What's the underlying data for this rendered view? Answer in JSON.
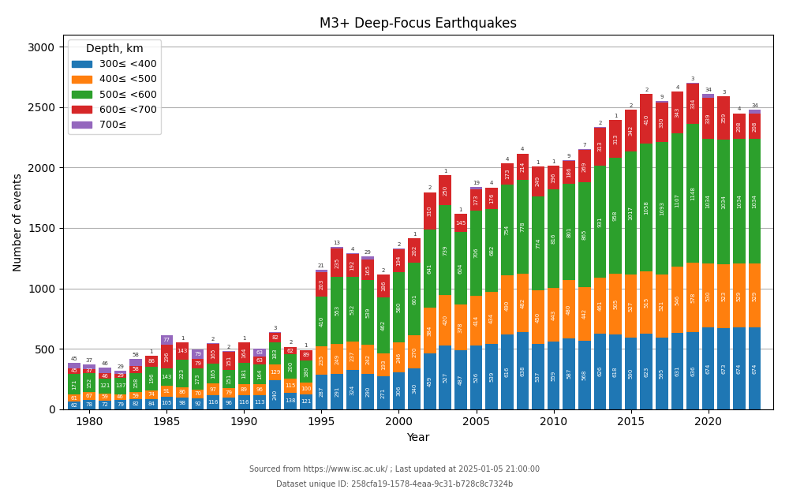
{
  "chart_data": {
    "type": "bar",
    "stacked": true,
    "data_labels": true,
    "title": "M3+ Deep-Focus Earthquakes",
    "x_label": "Year",
    "y_label": "Number of events",
    "legend_title": "Depth, km",
    "legend": "upper left",
    "grid": "y",
    "annotations": [
      "Sourced from https://www.isc.ac.uk/ ; Last updated at 2025-01-05 21:00:00",
      "Dataset unique ID: 258cfa19-1578-4eaa-9c31-b728c8c7324b"
    ],
    "x": [
      1979,
      1980,
      1981,
      1982,
      1983,
      1984,
      1985,
      1986,
      1987,
      1988,
      1989,
      1990,
      1991,
      1992,
      1993,
      1994,
      1995,
      1996,
      1997,
      1998,
      1999,
      2000,
      2001,
      2002,
      2003,
      2004,
      2005,
      2006,
      2007,
      2008,
      2009,
      2010,
      2011,
      2012,
      2013,
      2014,
      2015,
      2016,
      2017,
      2018,
      2019,
      2020,
      2021,
      2022,
      2023
    ],
    "series": [
      {
        "name": "300≤ <400",
        "values": [
          62,
          78,
          72,
          79,
          82,
          84,
          105,
          98,
          92,
          116,
          96,
          116,
          113,
          240,
          138,
          121,
          287,
          291,
          324,
          290,
          271,
          306,
          340,
          459,
          527,
          487,
          526,
          539,
          616,
          638,
          537,
          559,
          587,
          568,
          626,
          618,
          590,
          623,
          595,
          631,
          636,
          674,
          673,
          674,
          674
        ]
      },
      {
        "name": "400≤ <500",
        "values": [
          61,
          67,
          59,
          46,
          59,
          74,
          91,
          86,
          70,
          97,
          79,
          89,
          96,
          129,
          115,
          100,
          235,
          249,
          237,
          242,
          193,
          246,
          270,
          384,
          420,
          378,
          414,
          434,
          490,
          482,
          450,
          443,
          480,
          442,
          461,
          505,
          527,
          515,
          521,
          546,
          578,
          530,
          523,
          529,
          529
        ]
      },
      {
        "name": "500≤ <600",
        "values": [
          171,
          152,
          121,
          137,
          158,
          196,
          143,
          223,
          173,
          165,
          151,
          181,
          164,
          183,
          200,
          180,
          410,
          553,
          532,
          539,
          462,
          580,
          601,
          641,
          739,
          604,
          706,
          682,
          754,
          778,
          774,
          816,
          801,
          865,
          931,
          958,
          1017,
          1058,
          1093,
          1107,
          1148,
          1034,
          1034,
          1034,
          1034
        ]
      },
      {
        "name": "600≤ <700",
        "values": [
          45,
          37,
          46,
          29,
          58,
          86,
          196,
          143,
          79,
          165,
          151,
          164,
          63,
          82,
          62,
          89,
          203,
          235,
          192,
          165,
          186,
          194,
          202,
          310,
          250,
          145,
          173,
          176,
          173,
          214,
          249,
          196,
          186,
          269,
          313,
          313,
          342,
          410,
          330,
          343,
          334,
          339,
          359,
          208,
          208
        ]
      },
      {
        "name": "700≤",
        "values": [
          45,
          37,
          46,
          29,
          58,
          1,
          77,
          1,
          79,
          2,
          2,
          1,
          63,
          3,
          2,
          1,
          21,
          13,
          4,
          29,
          2,
          2,
          1,
          2,
          1,
          1,
          19,
          4,
          4,
          4,
          1,
          1,
          9,
          7,
          2,
          1,
          2,
          2,
          9,
          4,
          3,
          34,
          3,
          4,
          34
        ]
      }
    ],
    "xlim": [
      1978.3,
      2024.2
    ],
    "xticks": [
      1980,
      1985,
      1990,
      1995,
      2000,
      2005,
      2010,
      2015,
      2020
    ],
    "ylim": [
      0,
      3100
    ],
    "yticks": [
      0,
      500,
      1000,
      1500,
      2000,
      2500,
      3000
    ]
  }
}
